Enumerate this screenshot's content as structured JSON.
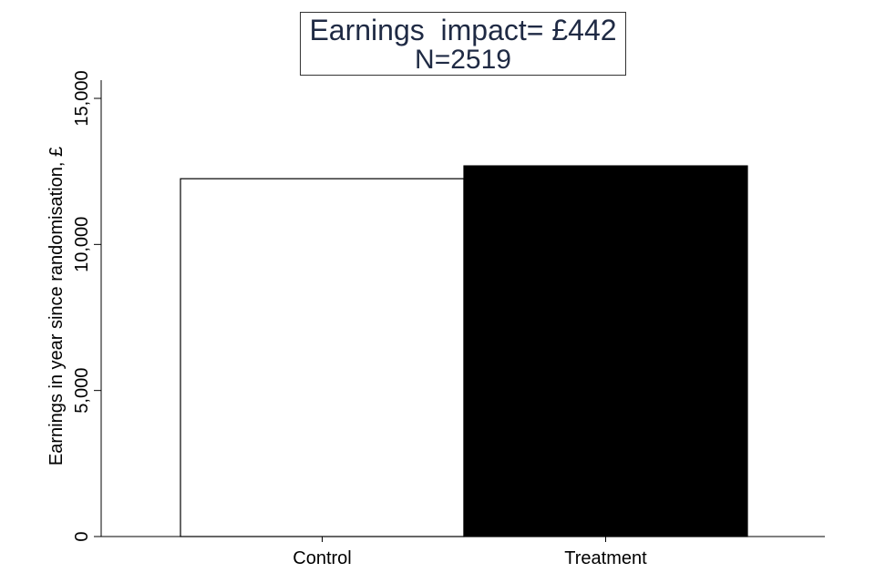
{
  "chart_data": {
    "type": "bar",
    "title": "Earnings  impact= £442",
    "subtitle": "N=2519",
    "ylabel": "Earnings in year since randomisation, £",
    "xlabel": "",
    "categories": [
      "Control",
      "Treatment"
    ],
    "values": [
      12250,
      12690
    ],
    "bar_colors": [
      "#ffffff",
      "#000000"
    ],
    "ylim": [
      0,
      15000
    ],
    "yticks": [
      0,
      5000,
      10000,
      15000
    ],
    "ytick_labels": [
      "0",
      "5,000",
      "10,000",
      "15,000"
    ],
    "grid": false,
    "legend": "none"
  }
}
